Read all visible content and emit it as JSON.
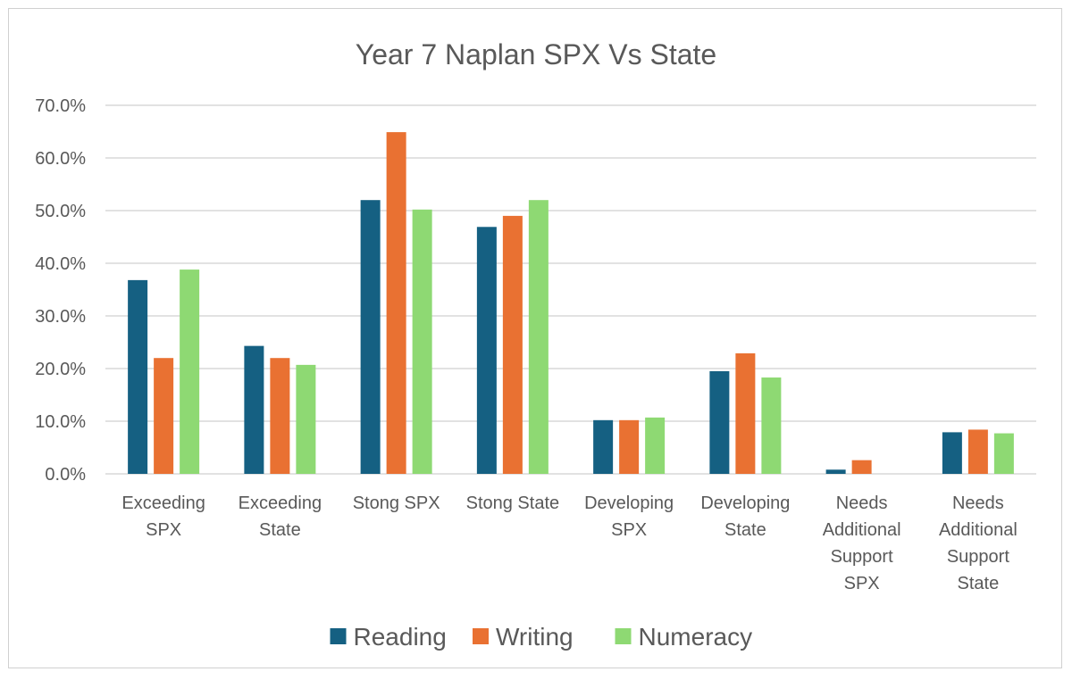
{
  "chart_data": {
    "type": "bar",
    "title": "Year 7 Naplan SPX Vs State",
    "xlabel": "",
    "ylabel": "",
    "ylim": [
      0,
      0.7
    ],
    "y_ticks": [
      "0.0%",
      "10.0%",
      "20.0%",
      "30.0%",
      "40.0%",
      "50.0%",
      "60.0%",
      "70.0%"
    ],
    "y_tick_values": [
      0,
      0.1,
      0.2,
      0.3,
      0.4,
      0.5,
      0.6,
      0.7
    ],
    "grid": true,
    "legend_position": "bottom",
    "categories": [
      [
        "Exceeding",
        "SPX"
      ],
      [
        "Exceeding",
        "State"
      ],
      [
        "Stong SPX"
      ],
      [
        "Stong State"
      ],
      [
        "Developing",
        "SPX"
      ],
      [
        "Developing",
        "State"
      ],
      [
        "Needs",
        "Additional",
        "Support",
        "SPX"
      ],
      [
        "Needs",
        "Additional",
        "Support",
        "State"
      ]
    ],
    "series": [
      {
        "name": "Reading",
        "color": "#156082",
        "values": [
          0.368,
          0.243,
          0.52,
          0.469,
          0.102,
          0.195,
          0.008,
          0.079
        ]
      },
      {
        "name": "Writing",
        "color": "#E97132",
        "values": [
          0.22,
          0.22,
          0.649,
          0.49,
          0.102,
          0.229,
          0.026,
          0.084
        ]
      },
      {
        "name": "Numeracy",
        "color": "#8ED973",
        "values": [
          0.388,
          0.207,
          0.502,
          0.52,
          0.107,
          0.183,
          0.0,
          0.077
        ]
      }
    ]
  }
}
